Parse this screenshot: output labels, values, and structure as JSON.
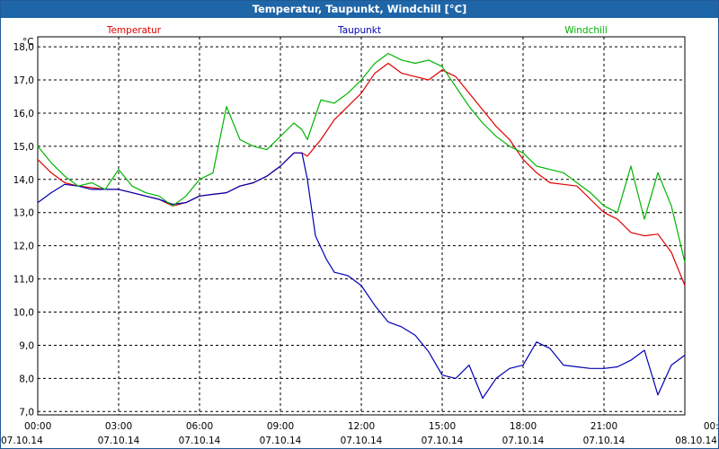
{
  "window_title": "Temperatur, Taupunkt, Windchill [°C]",
  "chart_data": {
    "type": "line",
    "title": "Temperatur, Taupunkt, Windchill [°C]",
    "ylabel": "°C",
    "xlabel": "",
    "ylim": [
      6.9,
      18.3
    ],
    "xlim": [
      0,
      24
    ],
    "grid": true,
    "y_ticks": [
      {
        "value": 7,
        "label": "7,0"
      },
      {
        "value": 8,
        "label": "8,0"
      },
      {
        "value": 9,
        "label": "9,0"
      },
      {
        "value": 10,
        "label": "10,0"
      },
      {
        "value": 11,
        "label": "11,0"
      },
      {
        "value": 12,
        "label": "12,0"
      },
      {
        "value": 13,
        "label": "13,0"
      },
      {
        "value": 14,
        "label": "14,0"
      },
      {
        "value": 15,
        "label": "15,0"
      },
      {
        "value": 16,
        "label": "16,0"
      },
      {
        "value": 17,
        "label": "17,0"
      },
      {
        "value": 18,
        "label": "18,0"
      }
    ],
    "x_ticks": [
      {
        "value": 0,
        "time": "00:00",
        "date": "07.10.14"
      },
      {
        "value": 3,
        "time": "03:00",
        "date": "07.10.14"
      },
      {
        "value": 6,
        "time": "06:00",
        "date": "07.10.14"
      },
      {
        "value": 9,
        "time": "09:00",
        "date": "07.10.14"
      },
      {
        "value": 12,
        "time": "12:00",
        "date": "07.10.14"
      },
      {
        "value": 15,
        "time": "15:00",
        "date": "07.10.14"
      },
      {
        "value": 18,
        "time": "18:00",
        "date": "07.10.14"
      },
      {
        "value": 21,
        "time": "21:00",
        "date": "07.10.14"
      },
      {
        "value": 24,
        "time": "00:00",
        "date": "08.10.14"
      }
    ],
    "series": [
      {
        "name": "Temperatur",
        "color": "#E00000",
        "legend_position": "top-left",
        "x": [
          0,
          0.5,
          1,
          1.5,
          2,
          2.5,
          3,
          3.5,
          4,
          4.5,
          5,
          5.5,
          6,
          6.5,
          7,
          7.5,
          8,
          8.5,
          9,
          9.5,
          9.8,
          10,
          10.5,
          11,
          11.5,
          12,
          12.5,
          13,
          13.5,
          14,
          14.5,
          15,
          15.5,
          16,
          16.5,
          17,
          17.5,
          18,
          18.5,
          19,
          19.5,
          20,
          20.5,
          21,
          21.5,
          22,
          22.5,
          23,
          23.5,
          24
        ],
        "values": [
          14.6,
          14.2,
          13.9,
          13.8,
          13.75,
          13.7,
          13.7,
          13.6,
          13.5,
          13.4,
          13.2,
          13.3,
          13.5,
          13.55,
          13.6,
          13.8,
          13.9,
          14.1,
          14.4,
          14.8,
          14.8,
          14.7,
          15.2,
          15.8,
          16.2,
          16.6,
          17.2,
          17.5,
          17.2,
          17.1,
          17.0,
          17.3,
          17.1,
          16.6,
          16.1,
          15.6,
          15.2,
          14.6,
          14.2,
          13.9,
          13.85,
          13.8,
          13.4,
          13.0,
          12.8,
          12.4,
          12.3,
          12.35,
          11.8,
          10.8
        ]
      },
      {
        "name": "Taupunkt",
        "color": "#0000B4",
        "legend_position": "top-center",
        "x": [
          0,
          0.5,
          1,
          1.5,
          2,
          2.5,
          3,
          3.5,
          4,
          4.5,
          5,
          5.5,
          6,
          6.5,
          7,
          7.5,
          8,
          8.5,
          9,
          9.5,
          9.8,
          10,
          10.3,
          10.7,
          11,
          11.5,
          12,
          12.5,
          13,
          13.5,
          14,
          14.5,
          15,
          15.5,
          16,
          16.5,
          17,
          17.5,
          18,
          18.5,
          19,
          19.5,
          20,
          20.5,
          21,
          21.5,
          22,
          22.5,
          23,
          23.5,
          24
        ],
        "values": [
          13.3,
          13.6,
          13.85,
          13.8,
          13.7,
          13.7,
          13.7,
          13.6,
          13.5,
          13.4,
          13.25,
          13.3,
          13.5,
          13.55,
          13.6,
          13.8,
          13.9,
          14.1,
          14.4,
          14.8,
          14.8,
          14.0,
          12.3,
          11.6,
          11.2,
          11.1,
          10.8,
          10.2,
          9.7,
          9.55,
          9.3,
          8.8,
          8.1,
          8.0,
          8.4,
          7.4,
          8.0,
          8.3,
          8.4,
          9.1,
          8.9,
          8.4,
          8.35,
          8.3,
          8.3,
          8.35,
          8.55,
          8.85,
          7.5,
          8.4,
          8.7
        ]
      },
      {
        "name": "Windchill",
        "color": "#00B400",
        "legend_position": "top-right",
        "x": [
          0,
          0.5,
          1,
          1.5,
          2,
          2.5,
          3,
          3.5,
          4,
          4.5,
          5,
          5.5,
          6,
          6.5,
          7,
          7.5,
          8,
          8.5,
          9,
          9.5,
          9.8,
          10,
          10.5,
          11,
          11.5,
          12,
          12.5,
          13,
          13.5,
          14,
          14.5,
          15,
          15.5,
          16,
          16.5,
          17,
          17.5,
          18,
          18.5,
          19,
          19.5,
          20,
          20.5,
          21,
          21.5,
          22,
          22.5,
          23,
          23.5,
          24
        ],
        "values": [
          15.0,
          14.5,
          14.1,
          13.8,
          13.9,
          13.7,
          14.3,
          13.8,
          13.6,
          13.5,
          13.2,
          13.5,
          14.0,
          14.2,
          16.2,
          15.2,
          15.0,
          14.9,
          15.3,
          15.7,
          15.5,
          15.2,
          16.4,
          16.3,
          16.6,
          17.0,
          17.5,
          17.8,
          17.6,
          17.5,
          17.6,
          17.4,
          16.8,
          16.2,
          15.7,
          15.3,
          15.0,
          14.8,
          14.4,
          14.3,
          14.2,
          13.9,
          13.6,
          13.2,
          13.0,
          14.4,
          12.8,
          14.2,
          13.2,
          11.5
        ]
      }
    ]
  }
}
